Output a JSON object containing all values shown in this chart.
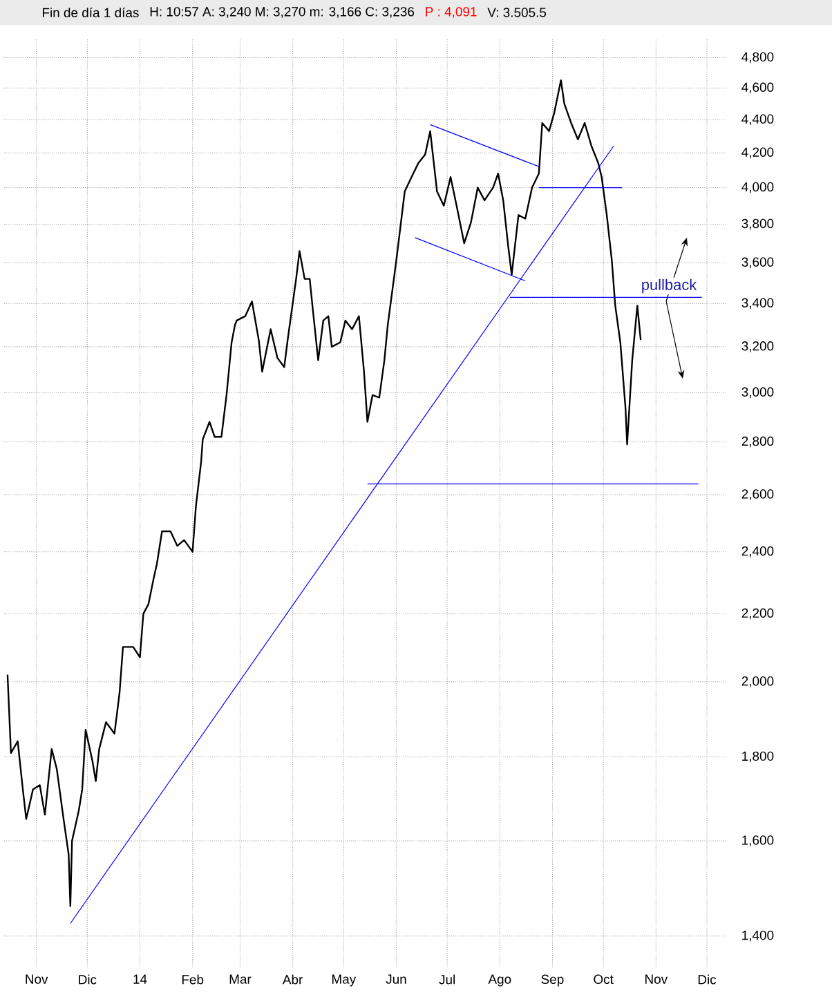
{
  "chart_data": {
    "type": "line",
    "title": "Fin de día 1 días",
    "subtitle": "H: 10:57  A: 3,240  M: 3,270  m: 3,166  C: 3,236",
    "annotations": [
      "P : 4,091",
      "V: 3.505.5",
      "pullback"
    ],
    "series": [
      {
        "color": "#000000",
        "x": [
          "2013-10-15",
          "2013-10-17",
          "2013-10-21",
          "2013-10-24",
          "2013-10-26",
          "2013-10-30",
          "2013-11-03",
          "2013-11-06",
          "2013-11-10",
          "2013-11-13",
          "2013-11-17",
          "2013-11-20",
          "2013-11-21",
          "2013-11-22",
          "2013-11-26",
          "2013-11-28",
          "2013-11-30",
          "2013-12-04",
          "2013-12-06",
          "2013-12-08",
          "2013-12-12",
          "2013-12-17",
          "2013-12-20",
          "2013-12-22",
          "2013-12-28",
          "2014-01-01",
          "2014-01-03",
          "2014-01-06",
          "2014-01-09",
          "2014-01-11",
          "2014-01-14",
          "2014-01-19",
          "2014-01-23",
          "2014-01-27",
          "2014-02-01",
          "2014-02-03",
          "2014-02-06",
          "2014-02-07",
          "2014-02-11",
          "2014-02-14",
          "2014-02-18",
          "2014-02-21",
          "2014-02-24",
          "2014-02-26",
          "2014-02-27",
          "2014-03-04",
          "2014-03-08",
          "2014-03-12",
          "2014-03-14",
          "2014-03-19",
          "2014-03-23",
          "2014-03-27",
          "2014-03-29",
          "2014-04-03",
          "2014-04-05",
          "2014-04-08",
          "2014-04-11",
          "2014-04-13",
          "2014-04-16",
          "2014-04-19",
          "2014-04-22",
          "2014-04-24",
          "2014-04-29",
          "2014-05-02",
          "2014-05-06",
          "2014-05-10",
          "2014-05-13",
          "2014-05-15",
          "2014-05-18",
          "2014-05-22",
          "2014-05-25",
          "2014-05-27",
          "2014-06-01",
          "2014-06-06",
          "2014-06-10",
          "2014-06-14",
          "2014-06-18",
          "2014-06-21",
          "2014-06-25",
          "2014-06-29",
          "2014-07-03",
          "2014-07-07",
          "2014-07-11",
          "2014-07-15",
          "2014-07-19",
          "2014-07-23",
          "2014-07-28",
          "2014-07-31",
          "2014-08-03",
          "2014-08-06",
          "2014-08-08",
          "2014-08-12",
          "2014-08-16",
          "2014-08-20",
          "2014-08-24",
          "2014-08-26",
          "2014-08-30",
          "2014-09-02",
          "2014-09-06",
          "2014-09-08",
          "2014-09-12",
          "2014-09-16",
          "2014-09-20",
          "2014-09-24",
          "2014-09-28",
          "2014-09-30",
          "2014-10-03",
          "2014-10-06",
          "2014-10-08",
          "2014-10-11",
          "2014-10-14",
          "2014-10-15",
          "2014-10-18",
          "2014-10-21",
          "2014-10-23"
        ],
        "values": [
          2020,
          1810,
          1840,
          1720,
          1650,
          1720,
          1730,
          1660,
          1820,
          1770,
          1650,
          1570,
          1460,
          1600,
          1670,
          1720,
          1870,
          1790,
          1740,
          1820,
          1890,
          1860,
          1970,
          2100,
          2100,
          2070,
          2200,
          2230,
          2310,
          2360,
          2470,
          2470,
          2420,
          2440,
          2400,
          2560,
          2720,
          2810,
          2880,
          2820,
          2820,
          2990,
          3220,
          3300,
          3320,
          3340,
          3410,
          3230,
          3090,
          3280,
          3150,
          3110,
          3230,
          3520,
          3660,
          3520,
          3520,
          3360,
          3140,
          3320,
          3340,
          3200,
          3220,
          3320,
          3280,
          3340,
          3090,
          2880,
          2990,
          2980,
          3140,
          3300,
          3610,
          3980,
          4060,
          4140,
          4190,
          4330,
          3980,
          3900,
          4060,
          3880,
          3700,
          3810,
          4000,
          3930,
          4000,
          4080,
          3930,
          3680,
          3540,
          3850,
          3830,
          4000,
          4080,
          4380,
          4330,
          4440,
          4650,
          4500,
          4380,
          4280,
          4380,
          4240,
          4140,
          4060,
          3850,
          3610,
          3390,
          3220,
          2940,
          2790,
          3140,
          3390,
          3230
        ]
      },
      {
        "color": "#0000ff",
        "x": [
          "2013-11-21",
          "2014-10-07"
        ],
        "values": [
          1425,
          4240
        ]
      },
      {
        "color": "#0000ff",
        "x": [
          "2014-05-15",
          "2014-11-26"
        ],
        "values": [
          2640,
          2640
        ]
      },
      {
        "color": "#0000ff",
        "x": [
          "2014-08-07",
          "2014-11-28"
        ],
        "values": [
          3430,
          3430
        ]
      },
      {
        "color": "#0000ff",
        "x": [
          "2014-08-24",
          "2014-10-12"
        ],
        "values": [
          4000,
          4000
        ]
      },
      {
        "color": "#0000ff",
        "x": [
          "2014-06-21",
          "2014-08-24"
        ],
        "values": [
          4370,
          4120
        ]
      },
      {
        "color": "#0000ff",
        "x": [
          "2014-06-12",
          "2014-08-16"
        ],
        "values": [
          3730,
          3510
        ]
      }
    ],
    "xlim": [
      "2013-10-13",
      "2014-12-12"
    ],
    "xticks": [
      {
        "value": "2013-11-01",
        "label": "Nov"
      },
      {
        "value": "2013-12-01",
        "label": "Dic"
      },
      {
        "value": "2014-01-01",
        "label": "14"
      },
      {
        "value": "2014-02-01",
        "label": "Feb"
      },
      {
        "value": "2014-03-01",
        "label": "Mar"
      },
      {
        "value": "2014-04-01",
        "label": "Abr"
      },
      {
        "value": "2014-05-01",
        "label": "May"
      },
      {
        "value": "2014-06-01",
        "label": "Jun"
      },
      {
        "value": "2014-07-01",
        "label": "Jul"
      },
      {
        "value": "2014-08-01",
        "label": "Ago"
      },
      {
        "value": "2014-09-01",
        "label": "Sep"
      },
      {
        "value": "2014-10-01",
        "label": "Oct"
      },
      {
        "value": "2014-11-01",
        "label": "Nov"
      },
      {
        "value": "2014-12-01",
        "label": "Dic"
      }
    ],
    "ylim": [
      1340,
      4930
    ],
    "log": "y",
    "yticks": [
      {
        "value": 1400,
        "label": "1,400"
      },
      {
        "value": 1600,
        "label": "1,600"
      },
      {
        "value": 1800,
        "label": "1,800"
      },
      {
        "value": 2000,
        "label": "2,000"
      },
      {
        "value": 2200,
        "label": "2,200"
      },
      {
        "value": 2400,
        "label": "2,400"
      },
      {
        "value": 2600,
        "label": "2,600"
      },
      {
        "value": 2800,
        "label": "2,800"
      },
      {
        "value": 3000,
        "label": "3,000"
      },
      {
        "value": 3200,
        "label": "3,200"
      },
      {
        "value": 3400,
        "label": "3,400"
      },
      {
        "value": 3600,
        "label": "3,600"
      },
      {
        "value": 3800,
        "label": "3,800"
      },
      {
        "value": 4000,
        "label": "4,000"
      },
      {
        "value": 4200,
        "label": "4,200"
      },
      {
        "value": 4400,
        "label": "4,400"
      },
      {
        "value": 4600,
        "label": "4,600"
      },
      {
        "value": 4800,
        "label": "4,800"
      }
    ],
    "grid": true,
    "marker": "none",
    "line_style": "solid"
  }
}
